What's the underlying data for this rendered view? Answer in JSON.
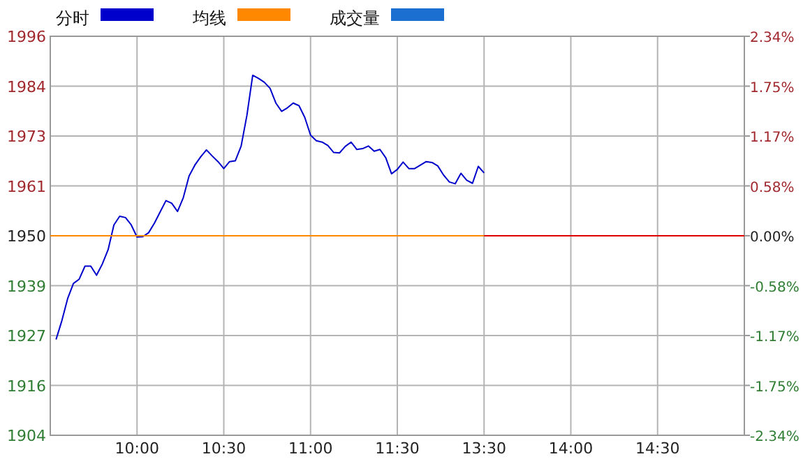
{
  "chart_data": {
    "type": "line",
    "categories": [
      null,
      null,
      null,
      null,
      null,
      null,
      null,
      null,
      null,
      null,
      null,
      null,
      null,
      null,
      null,
      "10:00",
      null,
      null,
      null,
      null,
      null,
      null,
      null,
      null,
      null,
      null,
      null,
      null,
      null,
      null,
      "10:30",
      null,
      null,
      null,
      null,
      null,
      null,
      null,
      null,
      null,
      null,
      null,
      null,
      null,
      null,
      "11:00",
      null,
      null,
      null,
      null,
      null,
      null,
      null,
      null,
      null,
      null,
      null,
      null,
      null,
      null,
      "11:30",
      null,
      null,
      null,
      null,
      null,
      null,
      null,
      null,
      null,
      null,
      null,
      null,
      null,
      null,
      "13:30",
      null,
      null,
      null,
      null,
      null,
      null,
      null,
      null,
      null,
      null,
      null,
      null,
      null,
      null,
      "14:00",
      null,
      null,
      null,
      null,
      null,
      null,
      null,
      null,
      null,
      null,
      null,
      null,
      null,
      null,
      "14:30",
      null,
      null,
      null,
      null,
      null,
      null,
      null,
      null,
      null,
      null,
      null,
      null,
      null,
      null,
      null
    ],
    "ylim": [
      1904,
      1996
    ],
    "yticks": [
      1904,
      {
        "value": 1915.5,
        "label": "1916"
      },
      1927,
      {
        "value": 1938.5,
        "label": "1939"
      },
      1950,
      {
        "value": 1961.5,
        "label": "1961"
      },
      1973,
      {
        "value": 1984.5,
        "label": "1984"
      },
      1996
    ],
    "y2lim": [
      -2.34,
      2.34
    ],
    "y2ticks": [
      {
        "value": -2.34,
        "label": "-2.34%"
      },
      {
        "value": -1.755,
        "label": "-1.75%"
      },
      {
        "value": -1.17,
        "label": "-1.17%"
      },
      {
        "value": -0.585,
        "label": "-0.58%"
      },
      {
        "value": 0,
        "label": "0.00%"
      },
      {
        "value": 0.585,
        "label": "0.58%"
      },
      {
        "value": 1.17,
        "label": "1.17%"
      },
      {
        "value": 1.755,
        "label": "1.75%"
      },
      {
        "value": 2.34,
        "label": "2.34%"
      }
    ],
    "grid": true,
    "legend": "top left",
    "ref_lines": [
      {
        "axis": "y",
        "value": 1950,
        "color": "#e00000"
      }
    ],
    "series": [
      {
        "name": "分时",
        "color": "#0000cc",
        "values": [
          null,
          1926.1,
          1930.4,
          1935.5,
          1939.0,
          1940.0,
          1943.0,
          1943.0,
          1940.9,
          1943.5,
          1946.8,
          1952.5,
          1954.5,
          1954.2,
          1952.5,
          1949.7,
          1949.8,
          1950.7,
          1952.9,
          1955.5,
          1958.1,
          1957.5,
          1955.6,
          1958.8,
          1963.8,
          1966.3,
          1968.2,
          1969.8,
          1968.4,
          1967.1,
          1965.5,
          1967.1,
          1967.3,
          1970.7,
          1977.8,
          1987.0,
          1986.3,
          1985.4,
          1984.0,
          1980.6,
          1978.7,
          1979.5,
          1980.6,
          1980.0,
          1977.3,
          1973.2,
          1971.9,
          1971.6,
          1970.8,
          1969.2,
          1969.1,
          1970.6,
          1971.6,
          1969.9,
          1970.1,
          1970.7,
          1969.5,
          1969.9,
          1968.0,
          1964.3,
          1965.3,
          1967.0,
          1965.5,
          1965.5,
          1966.3,
          1967.1,
          1966.9,
          1966.1,
          1964.0,
          1962.4,
          1962.0,
          1964.4,
          1962.8,
          1962.1,
          1966.0,
          1964.5,
          null,
          null,
          null,
          null,
          null,
          null,
          null,
          null,
          null,
          null,
          null,
          null,
          null,
          null,
          null,
          null,
          null,
          null,
          null,
          null,
          null,
          null,
          null,
          null,
          null,
          null,
          null,
          null,
          null,
          null,
          null,
          null,
          null,
          null,
          null,
          null,
          null,
          null,
          null,
          null,
          null,
          null,
          null,
          null,
          null
        ]
      },
      {
        "name": "均线",
        "color": "#ff8800",
        "values": [
          1950,
          1950,
          1950,
          1950,
          1950,
          1950,
          1950,
          1950,
          1950,
          1950,
          1950,
          1950,
          1950,
          1950,
          1950,
          1950,
          1950,
          1950,
          1950,
          1950,
          1950,
          1950,
          1950,
          1950,
          1950,
          1950,
          1950,
          1950,
          1950,
          1950,
          1950,
          1950,
          1950,
          1950,
          1950,
          1950,
          1950,
          1950,
          1950,
          1950,
          1950,
          1950,
          1950,
          1950,
          1950,
          1950,
          1950,
          1950,
          1950,
          1950,
          1950,
          1950,
          1950,
          1950,
          1950,
          1950,
          1950,
          1950,
          1950,
          1950,
          1950,
          1950,
          1950,
          1950,
          1950,
          1950,
          1950,
          1950,
          1950,
          1950,
          1950,
          1950,
          1950,
          1950,
          1950,
          1950,
          null,
          null,
          null,
          null,
          null,
          null,
          null,
          null,
          null,
          null,
          null,
          null,
          null,
          null,
          null,
          null,
          null,
          null,
          null,
          null,
          null,
          null,
          null,
          null,
          null,
          null,
          null,
          null,
          null,
          null,
          null,
          null,
          null,
          null,
          null,
          null,
          null,
          null,
          null,
          null,
          null,
          null,
          null,
          null,
          null
        ]
      },
      {
        "name": "成交量",
        "color": "#1a6fd0",
        "values": [
          null,
          null,
          null,
          null,
          null,
          null,
          null,
          null,
          null,
          null,
          null,
          null,
          null,
          null,
          null,
          null,
          null,
          null,
          null,
          null,
          null,
          null,
          null,
          null,
          null,
          null,
          null,
          null,
          null,
          null,
          null,
          null,
          null,
          null,
          null,
          null,
          null,
          null,
          null,
          null,
          null,
          null,
          null,
          null,
          null,
          null,
          null,
          null,
          null,
          null,
          null,
          null,
          null,
          null,
          null,
          null,
          null,
          null,
          null,
          null,
          null,
          null,
          null,
          null,
          null,
          null,
          null,
          null,
          null,
          null,
          null,
          null,
          null,
          null,
          null,
          null,
          null,
          null,
          null,
          null,
          null,
          null,
          null,
          null,
          null,
          null,
          null,
          null,
          null,
          null,
          null,
          null,
          null,
          null,
          null,
          null,
          null,
          null,
          null,
          null,
          null,
          null,
          null,
          null,
          null,
          null,
          null,
          null,
          null,
          null,
          null,
          null,
          null,
          null,
          null,
          null,
          null,
          null,
          null,
          null,
          null
        ]
      }
    ]
  }
}
